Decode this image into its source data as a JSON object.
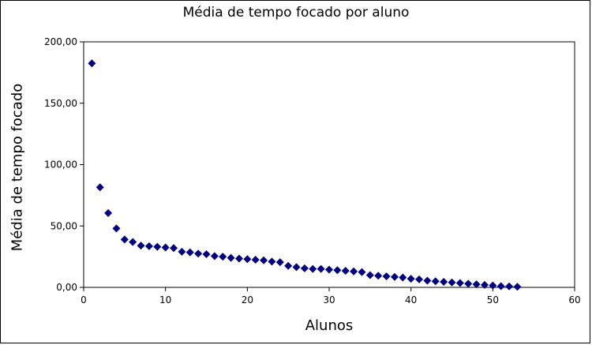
{
  "chart_data": {
    "type": "scatter",
    "title": "Média de tempo focado por aluno",
    "xlabel": "Alunos",
    "ylabel": "Média de tempo focado",
    "xlim": [
      0,
      60
    ],
    "ylim": [
      0,
      200
    ],
    "xticks": [
      0,
      10,
      20,
      30,
      40,
      50,
      60
    ],
    "yticks": [
      0,
      50,
      100,
      150,
      200
    ],
    "xtick_labels": [
      "0",
      "10",
      "20",
      "30",
      "40",
      "50",
      "60"
    ],
    "ytick_labels": [
      "0,00",
      "50,00",
      "100,00",
      "150,00",
      "200,00"
    ],
    "marker": "diamond",
    "color": "#000080",
    "grid": false,
    "legend": "none",
    "x": [
      1,
      2,
      3,
      4,
      5,
      6,
      7,
      8,
      9,
      10,
      11,
      12,
      13,
      14,
      15,
      16,
      17,
      18,
      19,
      20,
      21,
      22,
      23,
      24,
      25,
      26,
      27,
      28,
      29,
      30,
      31,
      32,
      33,
      34,
      35,
      36,
      37,
      38,
      39,
      40,
      41,
      42,
      43,
      44,
      45,
      46,
      47,
      48,
      49,
      50,
      51,
      52,
      53
    ],
    "y": [
      182.5,
      81.5,
      60.5,
      48.0,
      39.0,
      37.0,
      34.0,
      33.5,
      33.0,
      32.5,
      32.0,
      29.0,
      28.5,
      27.5,
      27.0,
      25.5,
      25.0,
      24.0,
      23.5,
      23.0,
      22.5,
      22.0,
      21.0,
      20.5,
      17.5,
      16.5,
      15.5,
      15.0,
      15.0,
      14.5,
      14.0,
      13.5,
      13.0,
      12.5,
      10.0,
      9.5,
      9.0,
      8.5,
      8.0,
      7.0,
      6.5,
      5.5,
      5.0,
      4.5,
      4.0,
      3.5,
      3.0,
      2.5,
      2.0,
      1.5,
      1.0,
      0.8,
      0.5
    ]
  }
}
